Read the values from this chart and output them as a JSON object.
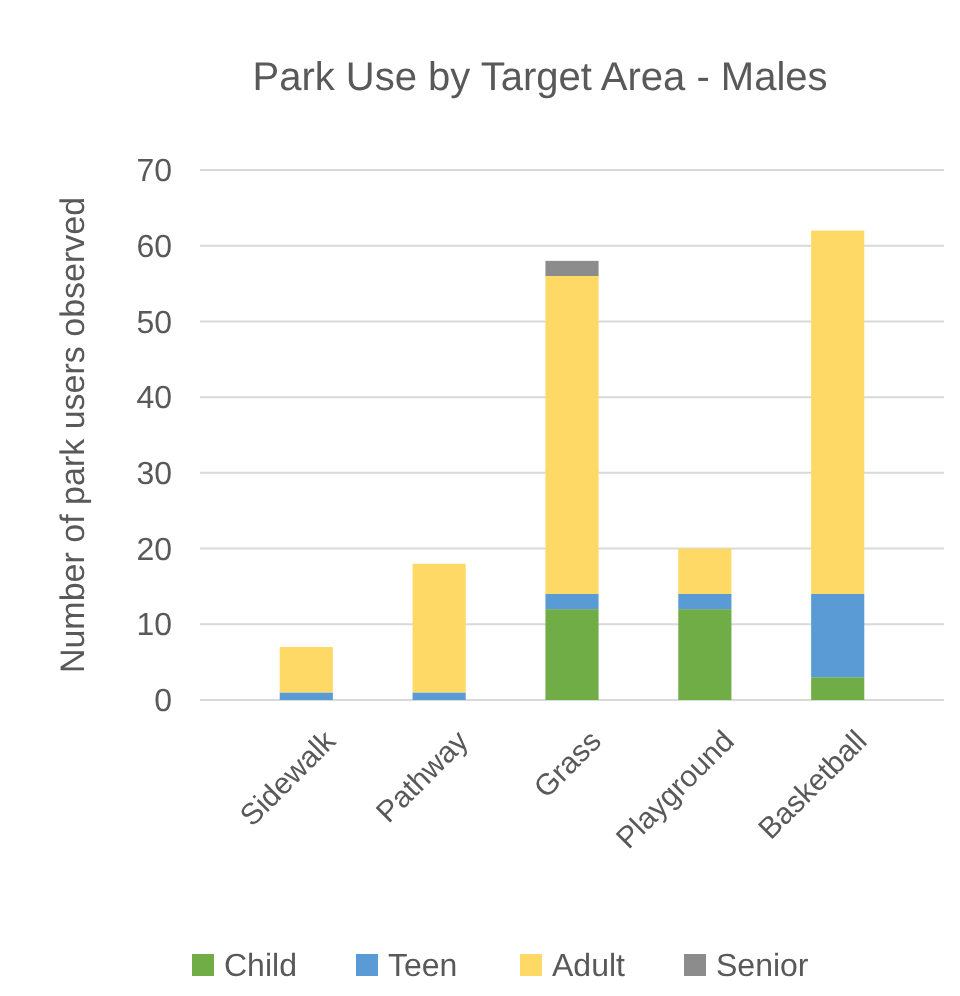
{
  "chart_data": {
    "type": "bar",
    "title": "Park Use by Target Area - Males",
    "ylabel": "Number of park users observed",
    "categories": [
      "Sidewalk",
      "Pathway",
      "Grass",
      "Playground",
      "Basketball"
    ],
    "stacked": true,
    "ylim": [
      0,
      70
    ],
    "yticks": [
      0,
      10,
      20,
      30,
      40,
      50,
      60,
      70
    ],
    "grid": "y",
    "legend": "bottom",
    "series": [
      {
        "name": "Child",
        "color": "#70ad47",
        "values": [
          0,
          0,
          12,
          12,
          3
        ]
      },
      {
        "name": "Teen",
        "color": "#5b9bd5",
        "values": [
          1,
          1,
          2,
          2,
          11
        ]
      },
      {
        "name": "Adult",
        "color": "#ffd966",
        "values": [
          6,
          17,
          42,
          6,
          48
        ]
      },
      {
        "name": "Senior",
        "color": "#8c8c8c",
        "values": [
          0,
          0,
          2,
          0,
          0
        ]
      }
    ]
  }
}
